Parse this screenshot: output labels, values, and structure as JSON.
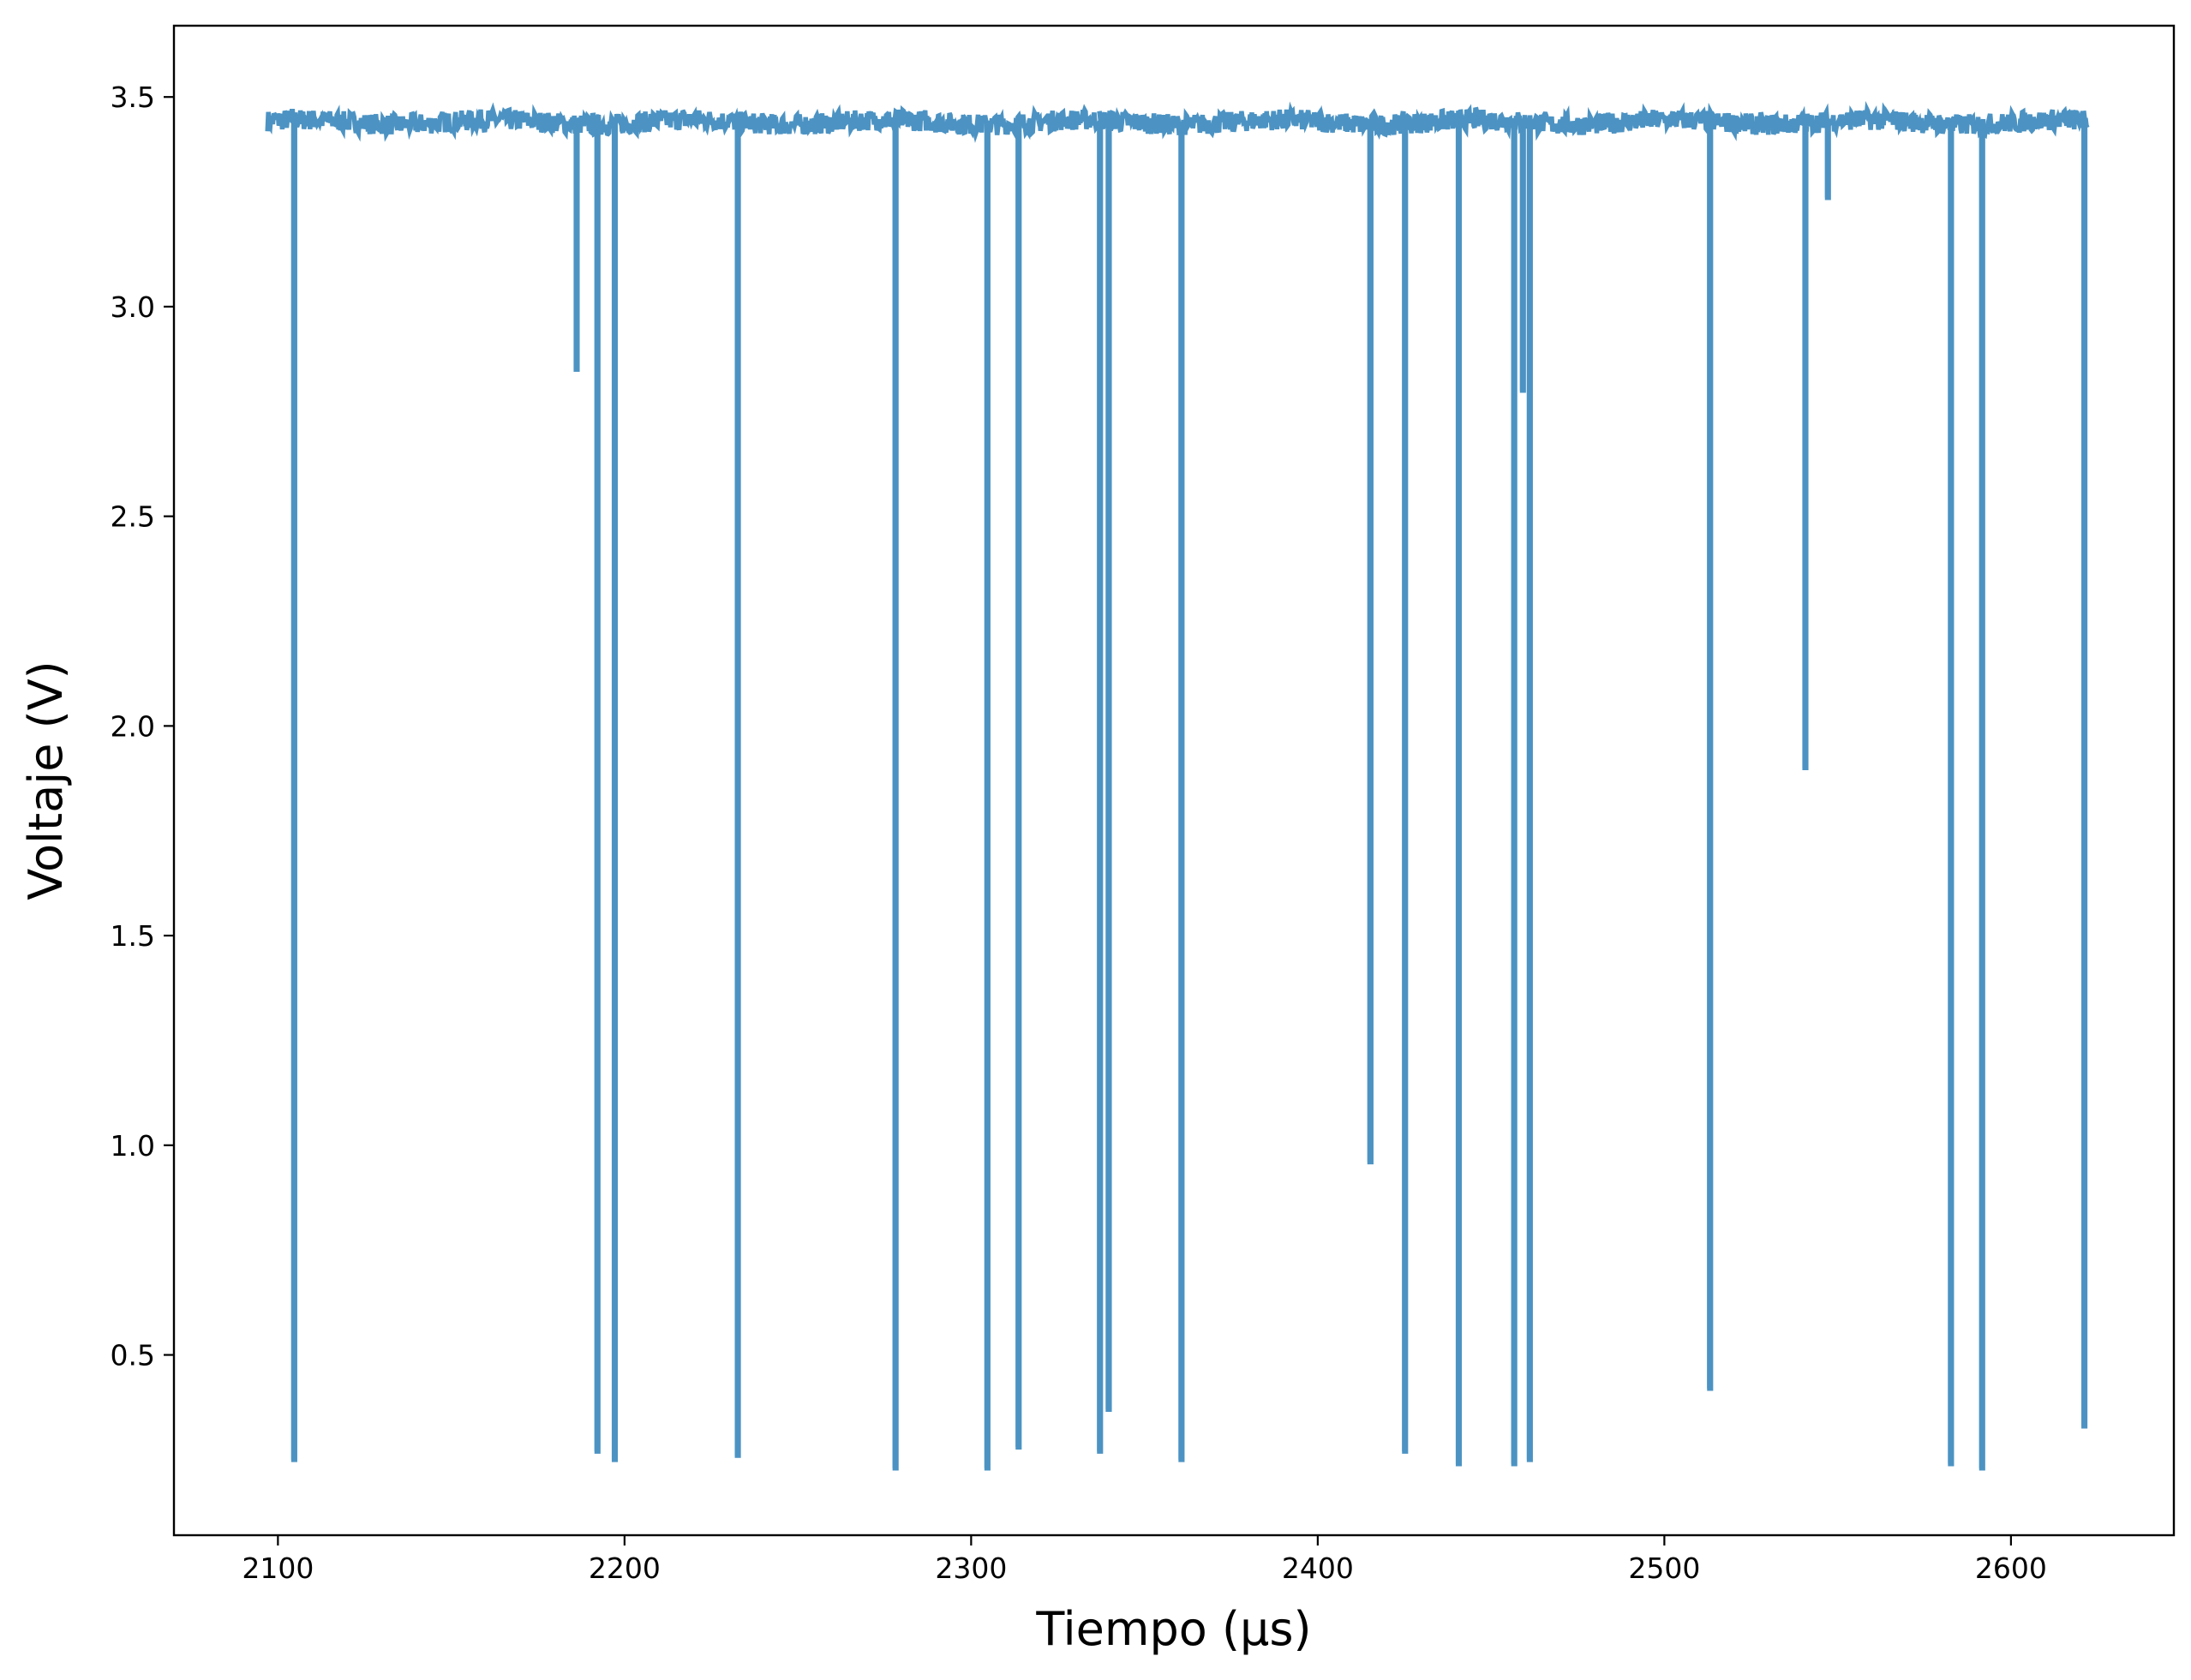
{
  "chart_data": {
    "type": "line",
    "title": "",
    "xlabel": "Tiempo (μs)",
    "ylabel": "Voltaje (V)",
    "xlim": [
      2070,
      2647
    ],
    "ylim": [
      0.07,
      3.67
    ],
    "xticks": [
      2100,
      2200,
      2300,
      2400,
      2500,
      2600
    ],
    "xtick_labels": [
      "2100",
      "2200",
      "2300",
      "2400",
      "2500",
      "2600"
    ],
    "yticks": [
      0.5,
      1.0,
      1.5,
      2.0,
      2.5,
      3.0,
      3.5
    ],
    "ytick_labels": [
      "0.5",
      "1.0",
      "1.5",
      "2.0",
      "2.5",
      "3.0",
      "3.5"
    ],
    "grid": false,
    "legend": null,
    "series": [
      {
        "name": "voltaje",
        "color": "#4c93c3",
        "baseline": 3.44,
        "t_start": 2097,
        "t_end": 2622,
        "spikes": [
          {
            "t": 2104.5,
            "v": 0.25
          },
          {
            "t": 2186.0,
            "v": 2.85
          },
          {
            "t": 2192.0,
            "v": 0.27
          },
          {
            "t": 2197.0,
            "v": 0.25
          },
          {
            "t": 2232.5,
            "v": 0.26
          },
          {
            "t": 2278.0,
            "v": 0.23
          },
          {
            "t": 2304.5,
            "v": 0.23
          },
          {
            "t": 2313.5,
            "v": 0.28
          },
          {
            "t": 2337.0,
            "v": 0.27
          },
          {
            "t": 2339.5,
            "v": 0.37
          },
          {
            "t": 2360.5,
            "v": 0.25
          },
          {
            "t": 2415.0,
            "v": 0.96
          },
          {
            "t": 2425.0,
            "v": 0.27
          },
          {
            "t": 2440.5,
            "v": 0.24
          },
          {
            "t": 2456.5,
            "v": 0.24
          },
          {
            "t": 2459.0,
            "v": 2.8
          },
          {
            "t": 2461.0,
            "v": 0.25
          },
          {
            "t": 2513.0,
            "v": 0.42
          },
          {
            "t": 2540.5,
            "v": 1.9
          },
          {
            "t": 2547.0,
            "v": 3.26
          },
          {
            "t": 2582.5,
            "v": 0.24
          },
          {
            "t": 2591.5,
            "v": 0.23
          },
          {
            "t": 2621.0,
            "v": 0.33
          }
        ]
      }
    ]
  }
}
